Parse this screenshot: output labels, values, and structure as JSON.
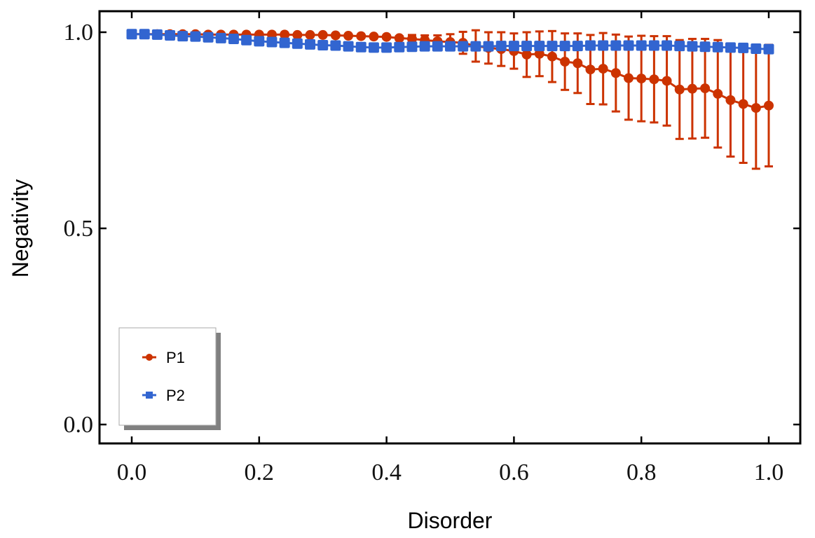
{
  "chart_data": {
    "type": "line",
    "title": "",
    "xlabel": "Disorder",
    "ylabel": "Negativity",
    "xlim": [
      -0.05,
      1.05
    ],
    "ylim": [
      -0.05,
      1.05
    ],
    "xticks": [
      "0.0",
      "0.2",
      "0.4",
      "0.6",
      "0.8",
      "1.0"
    ],
    "yticks": [
      "0.0",
      "0.5",
      "1.0"
    ],
    "grid": false,
    "legend_position": "bottom-left",
    "x": [
      0,
      0.02,
      0.04,
      0.06,
      0.08,
      0.1,
      0.12,
      0.14,
      0.16,
      0.18,
      0.2,
      0.22,
      0.24,
      0.26,
      0.28,
      0.3,
      0.32,
      0.34,
      0.36,
      0.38,
      0.4,
      0.42,
      0.44,
      0.46,
      0.48,
      0.5,
      0.52,
      0.54,
      0.56,
      0.58,
      0.6,
      0.62,
      0.64,
      0.66,
      0.68,
      0.7,
      0.72,
      0.74,
      0.76,
      0.78,
      0.8,
      0.82,
      0.84,
      0.86,
      0.88,
      0.9,
      0.92,
      0.94,
      0.96,
      0.98,
      1.0
    ],
    "series": [
      {
        "name": "P1",
        "color": "#CC3300",
        "marker": "circle",
        "values": [
          0.995,
          0.995,
          0.995,
          0.995,
          0.995,
          0.995,
          0.994,
          0.994,
          0.994,
          0.994,
          0.994,
          0.994,
          0.994,
          0.993,
          0.993,
          0.993,
          0.992,
          0.991,
          0.99,
          0.989,
          0.988,
          0.985,
          0.983,
          0.98,
          0.977,
          0.975,
          0.973,
          0.965,
          0.96,
          0.957,
          0.952,
          0.943,
          0.945,
          0.938,
          0.925,
          0.921,
          0.905,
          0.907,
          0.896,
          0.883,
          0.882,
          0.88,
          0.876,
          0.854,
          0.856,
          0.857,
          0.843,
          0.827,
          0.817,
          0.807,
          0.813
        ],
        "errors": [
          0,
          0,
          0,
          0,
          0,
          0,
          0,
          0,
          0,
          0,
          0,
          0,
          0,
          0,
          0,
          0,
          0,
          0,
          0,
          0,
          0.003,
          0.005,
          0.01,
          0.012,
          0.015,
          0.02,
          0.028,
          0.04,
          0.04,
          0.043,
          0.045,
          0.057,
          0.057,
          0.065,
          0.072,
          0.076,
          0.088,
          0.091,
          0.098,
          0.106,
          0.109,
          0.11,
          0.114,
          0.126,
          0.127,
          0.126,
          0.137,
          0.144,
          0.15,
          0.155,
          0.155
        ]
      },
      {
        "name": "P2",
        "color": "#3265D0",
        "marker": "square",
        "values": [
          0.995,
          0.995,
          0.994,
          0.992,
          0.99,
          0.989,
          0.987,
          0.985,
          0.983,
          0.98,
          0.977,
          0.975,
          0.973,
          0.971,
          0.969,
          0.967,
          0.966,
          0.964,
          0.962,
          0.961,
          0.961,
          0.962,
          0.963,
          0.964,
          0.964,
          0.964,
          0.964,
          0.964,
          0.964,
          0.965,
          0.965,
          0.965,
          0.965,
          0.965,
          0.965,
          0.965,
          0.966,
          0.966,
          0.966,
          0.966,
          0.966,
          0.966,
          0.966,
          0.965,
          0.964,
          0.963,
          0.962,
          0.961,
          0.96,
          0.958,
          0.957
        ]
      }
    ]
  }
}
